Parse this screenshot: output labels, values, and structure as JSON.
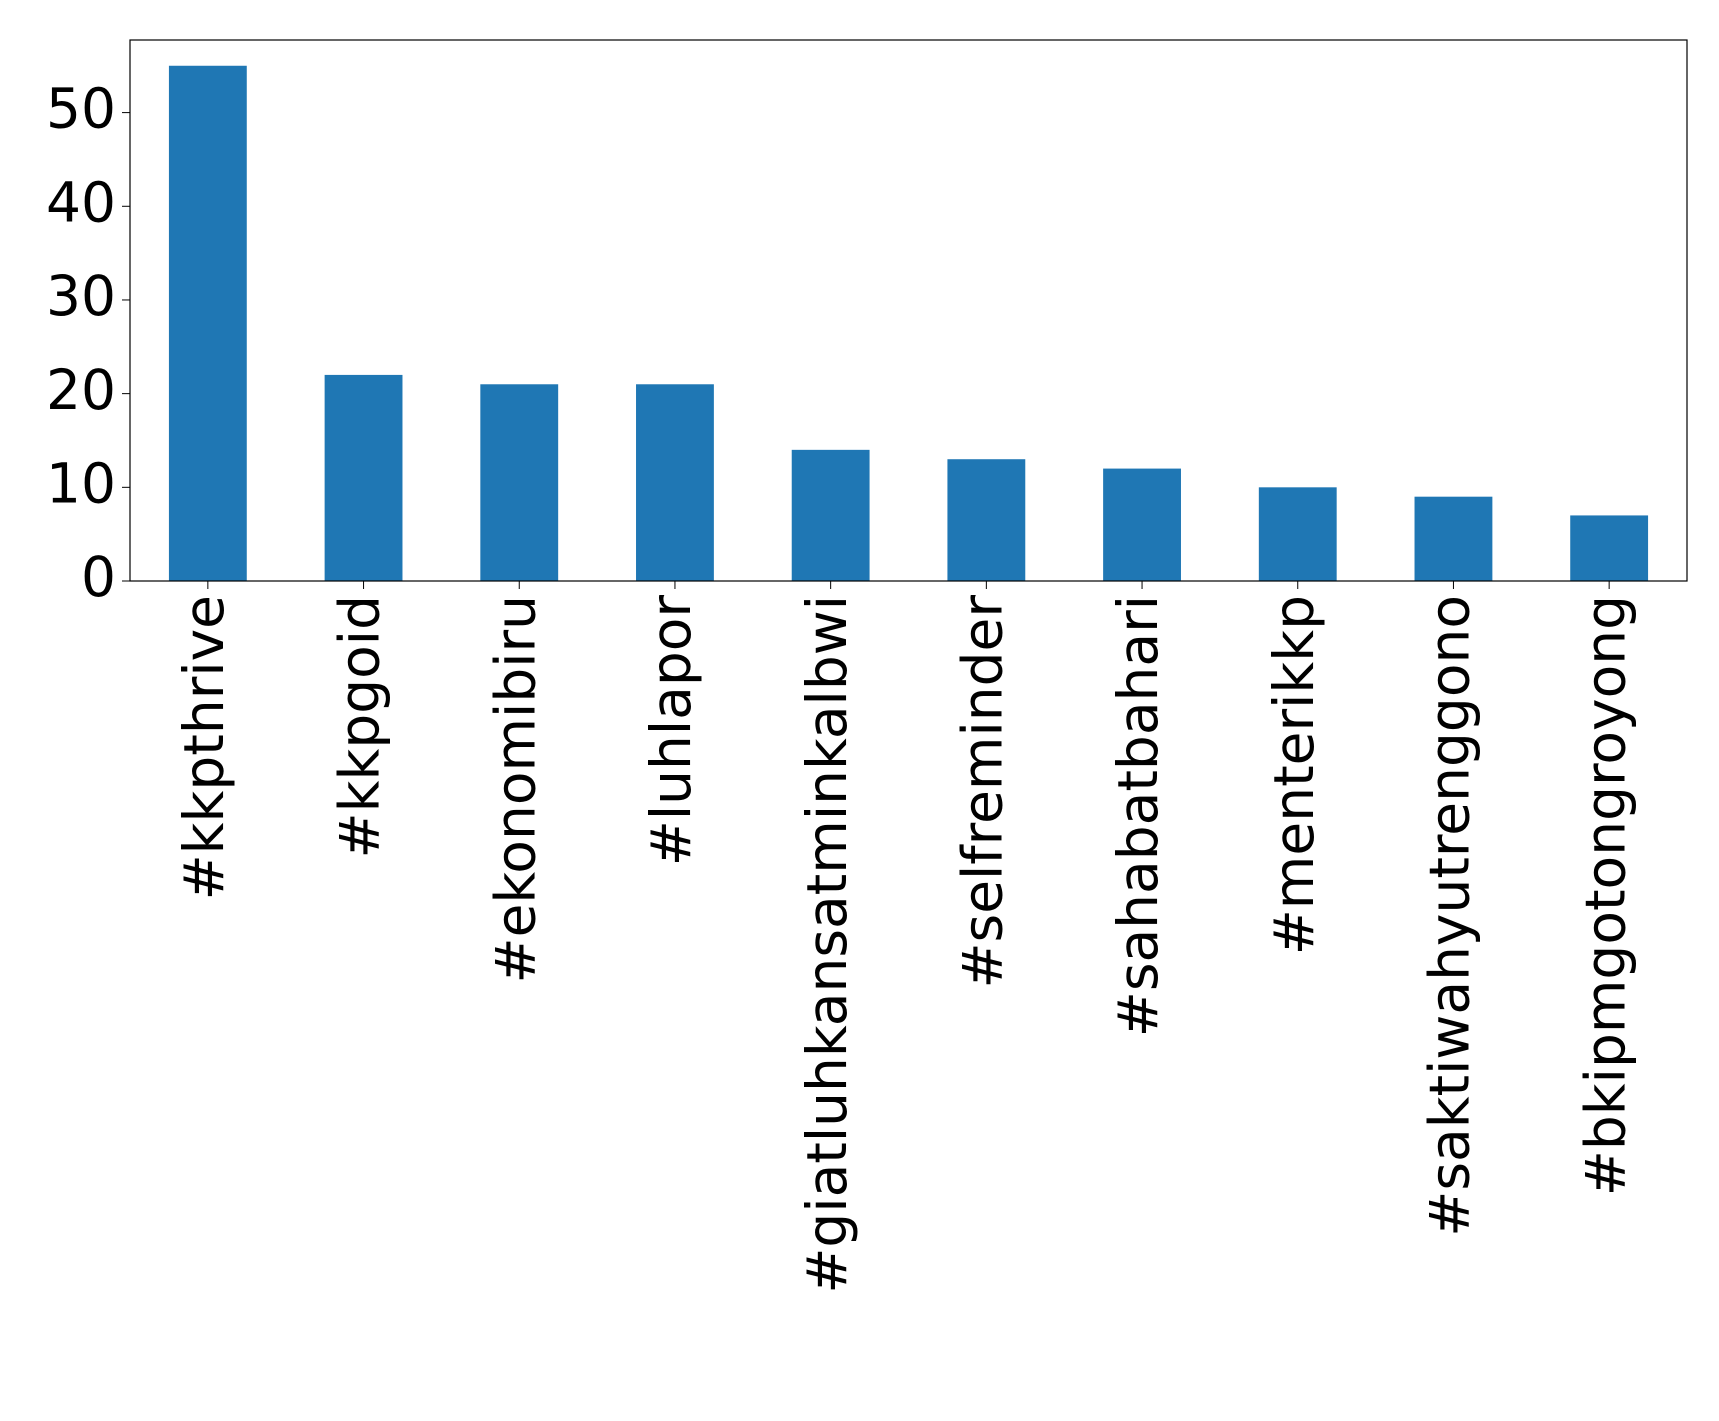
{
  "chart_data": {
    "type": "bar",
    "categories": [
      "#kkpthrive",
      "#kkpgoid",
      "#ekonomibiru",
      "#luhlapor",
      "#giatluhkansatminkalbwi",
      "#selfreminder",
      "#sahabatbahari",
      "#menterikkp",
      "#saktiwahyutrenggono",
      "#bkipmgotongroyong"
    ],
    "values": [
      55,
      22,
      21,
      21,
      14,
      13,
      12,
      10,
      9,
      7
    ],
    "color": "#1f77b4",
    "ylim": [
      0,
      57.75
    ],
    "yticks": [
      0,
      10,
      20,
      30,
      40,
      50
    ],
    "grid": false
  }
}
